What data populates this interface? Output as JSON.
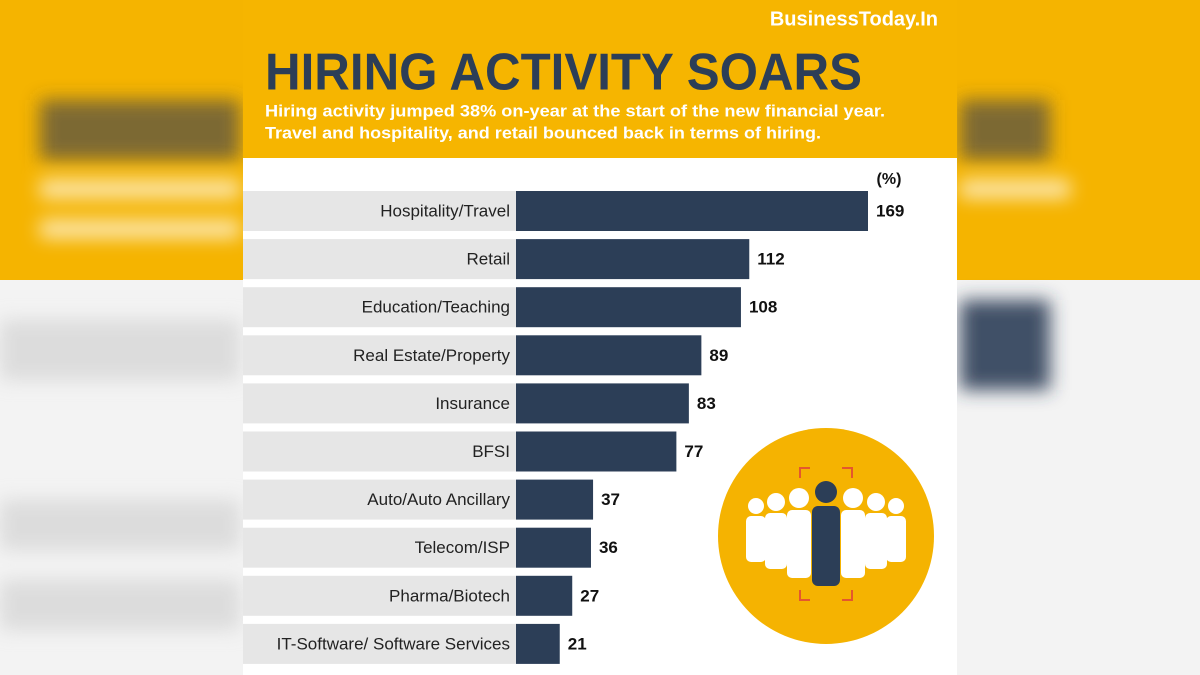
{
  "brand": "BusinessToday.In",
  "chart_data": {
    "type": "bar",
    "orientation": "horizontal",
    "title": "HIRING ACTIVITY SOARS",
    "subtitle": [
      "Hiring activity jumped 38% on-year at the start of the new financial year.",
      "Travel and hospitality, and retail bounced back in terms of hiring."
    ],
    "unit_label": "(%)",
    "categories": [
      "Hospitality/Travel",
      "Retail",
      "Education/Teaching",
      "Real Estate/Property",
      "Insurance",
      "BFSI",
      "Auto/Auto Ancillary",
      "Telecom/ISP",
      "Pharma/Biotech",
      "IT-Software/ Software Services"
    ],
    "values": [
      169,
      112,
      108,
      89,
      83,
      77,
      37,
      36,
      27,
      21
    ],
    "color": "#2c3e57"
  }
}
